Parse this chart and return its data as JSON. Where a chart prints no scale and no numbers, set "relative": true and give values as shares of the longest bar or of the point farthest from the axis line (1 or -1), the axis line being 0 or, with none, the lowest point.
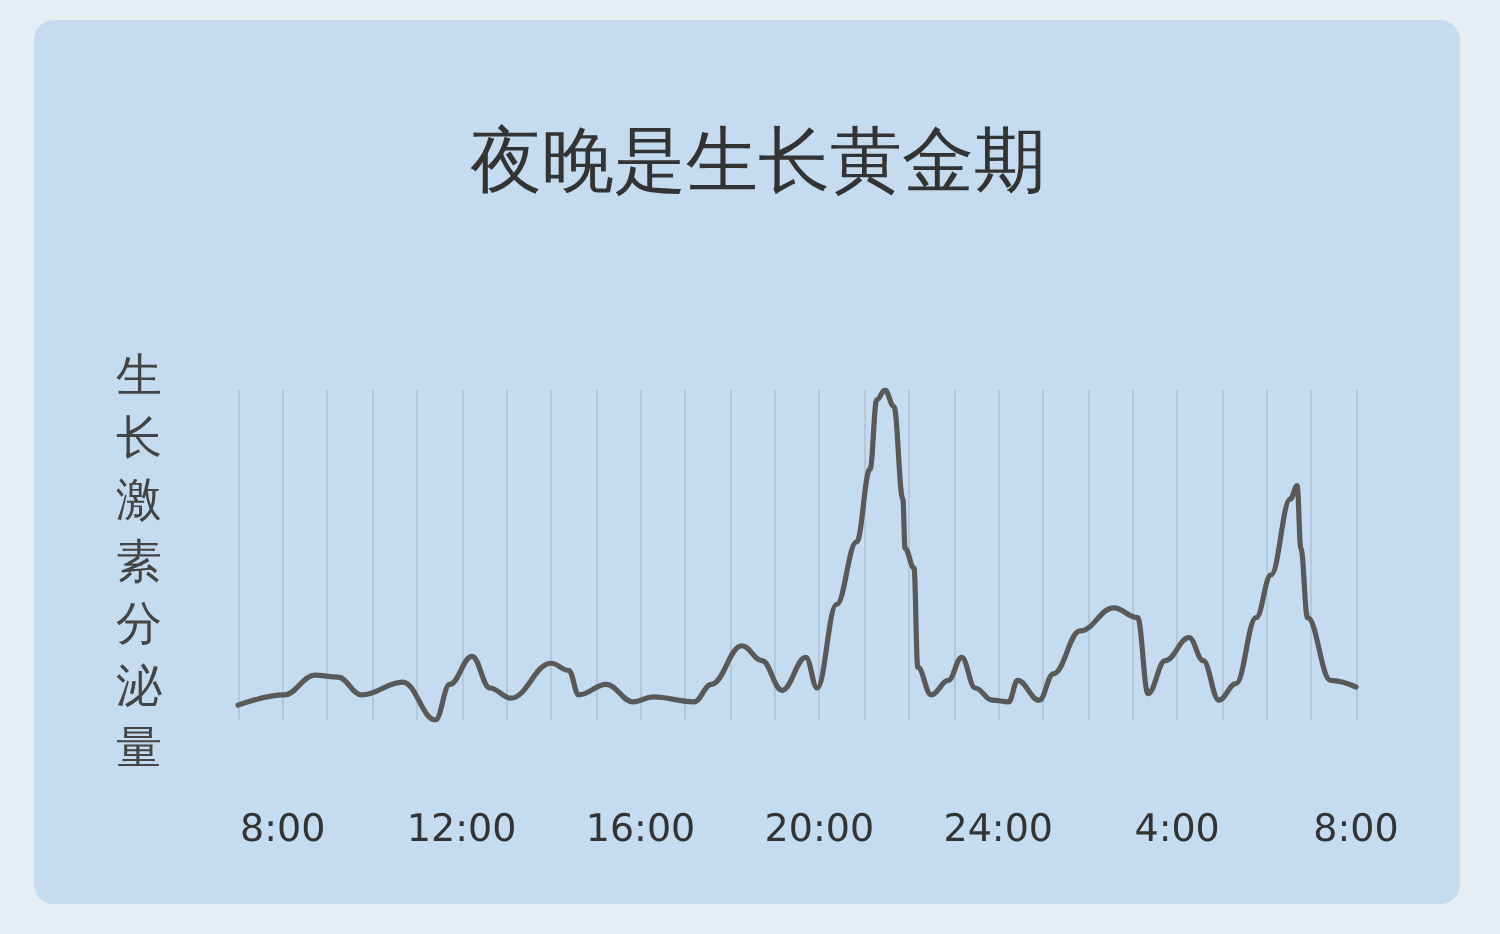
{
  "chart_data": {
    "type": "line",
    "title": "夜晚是生长黄金期",
    "ylabel": "生长激素分泌量",
    "relative": true,
    "x": [
      "--01-01T07:00",
      "--01-01T08:02",
      "--01-01T08:43",
      "--01-01T09:14",
      "--01-01T09:46",
      "--01-01T10:41",
      "--01-01T11:25",
      "--01-01T11:44",
      "--01-01T12:14",
      "--01-01T12:38",
      "--01-01T13:06",
      "--01-01T14:00",
      "--01-01T14:24",
      "--01-01T14:37",
      "--01-01T15:14",
      "--01-01T15:50",
      "--01-01T16:17",
      "--01-01T17:12",
      "--01-01T17:35",
      "--01-01T18:16",
      "--01-01T18:43",
      "--01-01T19:10",
      "--01-01T19:42",
      "--01-01T19:57",
      "--01-01T20:23",
      "--01-01T20:50",
      "--01-01T21:08",
      "--01-01T21:17",
      "--01-01T21:28",
      "--01-01T21:40",
      "--01-01T21:52",
      "--01-01T21:55",
      "--01-01T22:07",
      "--01-01T22:12",
      "--01-01T22:30",
      "--01-01T22:53",
      "--01-01T23:11",
      "--01-01T23:29",
      "--01-01T23:52",
      "--01-02T00:14",
      "--01-02T00:26",
      "--01-02T00:55",
      "--01-02T01:14",
      "--01-02T01:50",
      "--01-02T02:35",
      "--01-02T03:07",
      "--01-02T03:21",
      "--01-02T03:44",
      "--01-02T04:16",
      "--01-02T04:35",
      "--01-02T04:56",
      "--01-02T05:19",
      "--01-02T05:46",
      "--01-02T06:06",
      "--01-02T06:32",
      "--01-02T06:41",
      "--01-02T06:46",
      "--01-02T06:55",
      "--01-02T07:26",
      "--01-02T08:00"
    ],
    "series": [
      {
        "color": "#595959",
        "values": [
          0.045,
          0.076,
          0.136,
          0.13,
          0.076,
          0.115,
          0,
          0.108,
          0.193,
          0.097,
          0.066,
          0.172,
          0.15,
          0.076,
          0.108,
          0.055,
          0.07,
          0.055,
          0.108,
          0.225,
          0.18,
          0.09,
          0.19,
          0.097,
          0.35,
          0.54,
          0.76,
          0.97,
          1,
          0.95,
          0.67,
          0.52,
          0.46,
          0.16,
          0.076,
          0.12,
          0.19,
          0.097,
          0.06,
          0.055,
          0.12,
          0.06,
          0.14,
          0.27,
          0.34,
          0.31,
          0.08,
          0.18,
          0.25,
          0.18,
          0.06,
          0.11,
          0.31,
          0.44,
          0.67,
          0.71,
          0.52,
          0.31,
          0.12,
          0.1
        ]
      }
    ],
    "xlim": [
      "--01-01T07:00",
      "--01-02T08:00"
    ],
    "xticks": [
      {
        "value": "--01-01T07:00",
        "label": null
      },
      {
        "value": "--01-01T08:00",
        "label": "8:00"
      },
      {
        "value": "--01-01T09:00",
        "label": null
      },
      {
        "value": "--01-01T10:00",
        "label": null
      },
      {
        "value": "--01-01T11:00",
        "label": null
      },
      {
        "value": "--01-01T12:00",
        "label": "12:00"
      },
      {
        "value": "--01-01T13:00",
        "label": null
      },
      {
        "value": "--01-01T14:00",
        "label": null
      },
      {
        "value": "--01-01T15:00",
        "label": null
      },
      {
        "value": "--01-01T16:00",
        "label": "16:00"
      },
      {
        "value": "--01-01T17:00",
        "label": null
      },
      {
        "value": "--01-01T18:00",
        "label": null
      },
      {
        "value": "--01-01T19:00",
        "label": null
      },
      {
        "value": "--01-01T20:00",
        "label": "20:00"
      },
      {
        "value": "--01-01T21:00",
        "label": null
      },
      {
        "value": "--01-01T22:00",
        "label": null
      },
      {
        "value": "--01-01T23:00",
        "label": null
      },
      {
        "value": "--01-02T00:00",
        "label": "24:00"
      },
      {
        "value": "--01-02T01:00",
        "label": null
      },
      {
        "value": "--01-02T02:00",
        "label": null
      },
      {
        "value": "--01-02T03:00",
        "label": null
      },
      {
        "value": "--01-02T04:00",
        "label": "4:00"
      },
      {
        "value": "--01-02T05:00",
        "label": null
      },
      {
        "value": "--01-02T06:00",
        "label": null
      },
      {
        "value": "--01-02T07:00",
        "label": null
      },
      {
        "value": "--01-02T08:00",
        "label": "8:00"
      }
    ],
    "grid": "x",
    "marker": "none",
    "line_style": "solid"
  }
}
